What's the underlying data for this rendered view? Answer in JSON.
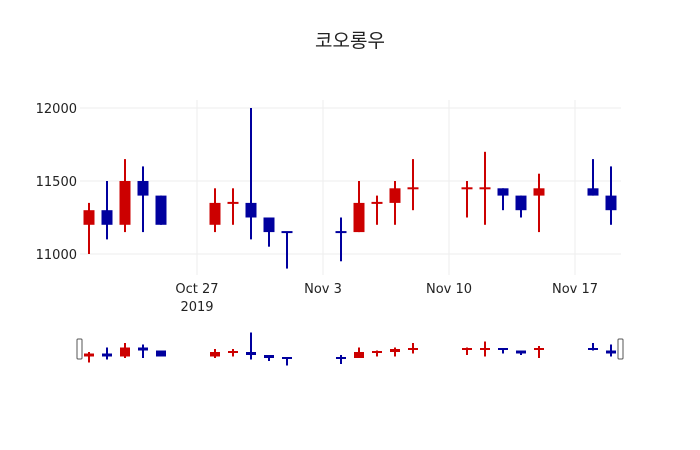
{
  "chart_data": {
    "type": "candlestick",
    "title": "코오롱우",
    "xlabel": "",
    "ylabel": "",
    "ylim": [
      10856,
      12055
    ],
    "yticks": [
      11000,
      11500,
      12000
    ],
    "xticks": [
      {
        "label": "Oct 27",
        "sub": "2019",
        "day": 0
      },
      {
        "label": "Nov 3",
        "sub": "",
        "day": 7
      },
      {
        "label": "Nov 10",
        "sub": "",
        "day": 14
      },
      {
        "label": "Nov 17",
        "sub": "",
        "day": 21
      }
    ],
    "grid": true,
    "increasing_color": "#cc0000",
    "decreasing_color": "#00009e",
    "rangeslider": true,
    "series": [
      {
        "date": "2019-10-21",
        "day": -6,
        "open": 11200,
        "high": 11350,
        "low": 11000,
        "close": 11300
      },
      {
        "date": "2019-10-22",
        "day": -5,
        "open": 11300,
        "high": 11500,
        "low": 11100,
        "close": 11200
      },
      {
        "date": "2019-10-23",
        "day": -4,
        "open": 11200,
        "high": 11650,
        "low": 11150,
        "close": 11500
      },
      {
        "date": "2019-10-24",
        "day": -3,
        "open": 11500,
        "high": 11600,
        "low": 11150,
        "close": 11400
      },
      {
        "date": "2019-10-25",
        "day": -2,
        "open": 11400,
        "high": 11400,
        "low": 11200,
        "close": 11200
      },
      {
        "date": "2019-10-28",
        "day": 1,
        "open": 11200,
        "high": 11450,
        "low": 11150,
        "close": 11350
      },
      {
        "date": "2019-10-29",
        "day": 2,
        "open": 11350,
        "high": 11450,
        "low": 11200,
        "close": 11350,
        "up": true
      },
      {
        "date": "2019-10-30",
        "day": 3,
        "open": 11350,
        "high": 12000,
        "low": 11100,
        "close": 11250
      },
      {
        "date": "2019-10-31",
        "day": 4,
        "open": 11250,
        "high": 11250,
        "low": 11050,
        "close": 11150
      },
      {
        "date": "2019-11-01",
        "day": 5,
        "open": 11150,
        "high": 11150,
        "low": 10900,
        "close": 11150,
        "up": false
      },
      {
        "date": "2019-11-04",
        "day": 8,
        "open": 11150,
        "high": 11250,
        "low": 10950,
        "close": 11150,
        "up": false
      },
      {
        "date": "2019-11-05",
        "day": 9,
        "open": 11150,
        "high": 11500,
        "low": 11150,
        "close": 11350
      },
      {
        "date": "2019-11-06",
        "day": 10,
        "open": 11350,
        "high": 11400,
        "low": 11200,
        "close": 11350,
        "up": true
      },
      {
        "date": "2019-11-07",
        "day": 11,
        "open": 11350,
        "high": 11500,
        "low": 11200,
        "close": 11450
      },
      {
        "date": "2019-11-08",
        "day": 12,
        "open": 11450,
        "high": 11650,
        "low": 11300,
        "close": 11450,
        "up": true
      },
      {
        "date": "2019-11-11",
        "day": 15,
        "open": 11450,
        "high": 11500,
        "low": 11250,
        "close": 11450,
        "up": true
      },
      {
        "date": "2019-11-12",
        "day": 16,
        "open": 11450,
        "high": 11700,
        "low": 11200,
        "close": 11450,
        "up": true
      },
      {
        "date": "2019-11-13",
        "day": 17,
        "open": 11450,
        "high": 11450,
        "low": 11300,
        "close": 11400
      },
      {
        "date": "2019-11-14",
        "day": 18,
        "open": 11400,
        "high": 11400,
        "low": 11250,
        "close": 11300
      },
      {
        "date": "2019-11-15",
        "day": 19,
        "open": 11400,
        "high": 11550,
        "low": 11150,
        "close": 11450
      },
      {
        "date": "2019-11-18",
        "day": 22,
        "open": 11450,
        "high": 11650,
        "low": 11400,
        "close": 11400
      },
      {
        "date": "2019-11-19",
        "day": 23,
        "open": 11400,
        "high": 11600,
        "low": 11200,
        "close": 11300
      }
    ]
  }
}
